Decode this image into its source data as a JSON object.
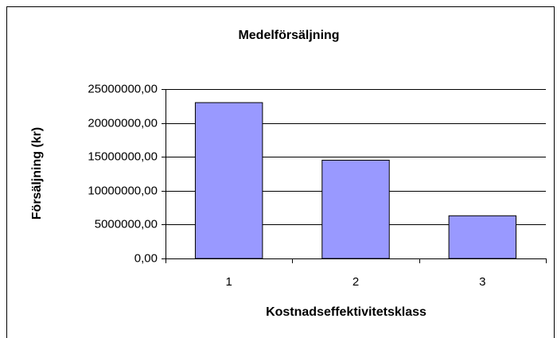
{
  "chart_data": {
    "type": "bar",
    "title": "Medelförsäljning",
    "x_label": "Kostnadseffektivitetsklass",
    "y_label": "Försäljning (kr)",
    "categories": [
      "1",
      "2",
      "3"
    ],
    "values": [
      23000000,
      14500000,
      6300000
    ],
    "color": "#9999ff",
    "ylim": [
      0,
      25000000
    ],
    "yticks": [
      {
        "value": 0,
        "label": "0,00"
      },
      {
        "value": 5000000,
        "label": "5000000,00"
      },
      {
        "value": 10000000,
        "label": "10000000,00"
      },
      {
        "value": 15000000,
        "label": "15000000,00"
      },
      {
        "value": 20000000,
        "label": "20000000,00"
      },
      {
        "value": 25000000,
        "label": "25000000,00"
      }
    ],
    "grid": true
  }
}
